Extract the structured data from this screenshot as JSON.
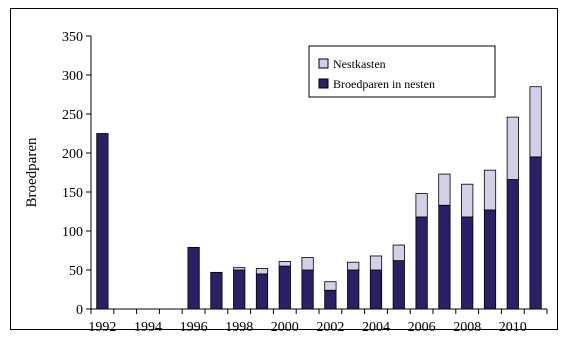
{
  "chart_data": {
    "type": "bar",
    "stacked": true,
    "title": "",
    "xlabel": "",
    "ylabel": "Broedparen",
    "ylim": [
      0,
      350
    ],
    "yticks": [
      0,
      50,
      100,
      150,
      200,
      250,
      300,
      350
    ],
    "xtick_labels": [
      "1992",
      "1994",
      "1996",
      "1998",
      "2000",
      "2002",
      "2004",
      "2006",
      "2008",
      "2010"
    ],
    "grid": false,
    "legend_position": "top-right",
    "categories": [
      "1992",
      "1993",
      "1994",
      "1995",
      "1996",
      "1997",
      "1998",
      "1999",
      "2000",
      "2001",
      "2002",
      "2003",
      "2004",
      "2005",
      "2006",
      "2007",
      "2008",
      "2009",
      "2010",
      "2011"
    ],
    "series": [
      {
        "name": "Broedparen in nesten",
        "color": "#2b1f66",
        "values": [
          225,
          0,
          0,
          0,
          79,
          47,
          50,
          45,
          55,
          50,
          24,
          50,
          50,
          62,
          118,
          133,
          118,
          127,
          166,
          195
        ]
      },
      {
        "name": "Nestkasten",
        "color": "#d2d0e6",
        "values": [
          0,
          0,
          0,
          0,
          0,
          0,
          3,
          7,
          6,
          16,
          11,
          10,
          18,
          20,
          30,
          40,
          42,
          51,
          80,
          90
        ]
      }
    ]
  }
}
